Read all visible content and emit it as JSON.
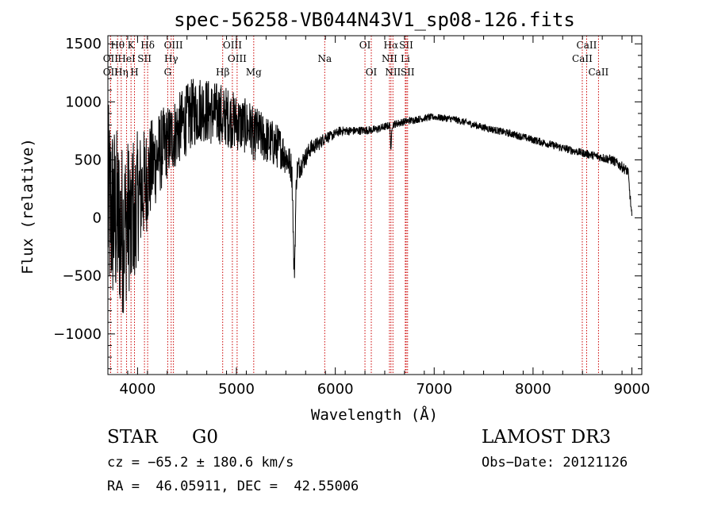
{
  "chart_data": {
    "type": "line",
    "title": "spec-56258-VB044N43V1_sp08-126.fits",
    "xlabel": "Wavelength (Å)",
    "ylabel": "Flux (relative)",
    "xlim": [
      3700,
      9100
    ],
    "ylim": [
      -1350,
      1570
    ],
    "x_ticks": [
      4000,
      5000,
      6000,
      7000,
      8000,
      9000
    ],
    "y_ticks": [
      -1000,
      -500,
      0,
      500,
      1000,
      1500
    ],
    "x_tick_labels": [
      "4000",
      "5000",
      "6000",
      "7000",
      "8000",
      "9000"
    ],
    "y_tick_labels": [
      "−1000",
      "−500",
      "0",
      "500",
      "1000",
      "1500"
    ],
    "grid": false,
    "line_color": "#000000",
    "marker_color": "#cc0000",
    "spectrum_anchors": {
      "x": [
        3700,
        3780,
        3850,
        3950,
        4050,
        4150,
        4250,
        4350,
        4450,
        4550,
        4650,
        4750,
        4850,
        4950,
        5050,
        5150,
        5250,
        5350,
        5450,
        5520,
        5580,
        5650,
        5750,
        5850,
        5900,
        5950,
        6050,
        6200,
        6400,
        6560,
        6700,
        6900,
        7000,
        7200,
        7500,
        7800,
        8100,
        8400,
        8500,
        8600,
        8800,
        8900,
        8960,
        8980,
        9000
      ],
      "y": [
        100,
        0,
        -100,
        100,
        250,
        450,
        600,
        700,
        800,
        900,
        950,
        900,
        900,
        850,
        800,
        780,
        700,
        650,
        600,
        500,
        400,
        450,
        600,
        650,
        700,
        700,
        750,
        750,
        760,
        800,
        830,
        860,
        870,
        850,
        780,
        720,
        650,
        580,
        560,
        540,
        500,
        440,
        400,
        200,
        0
      ]
    },
    "noise_profile": {
      "x": [
        3700,
        3900,
        4100,
        4300,
        4600,
        5000,
        5400,
        5700,
        6000,
        7000,
        8500,
        8900
      ],
      "amplitude": [
        900,
        700,
        450,
        320,
        300,
        250,
        200,
        80,
        40,
        30,
        35,
        45
      ]
    },
    "absorption_dips": [
      {
        "x": 5585,
        "width": 15,
        "depth": 850
      },
      {
        "x": 6563,
        "width": 6,
        "depth": 240
      },
      {
        "x": 4861,
        "width": 8,
        "depth": 150
      },
      {
        "x": 5175,
        "width": 10,
        "depth": 150
      },
      {
        "x": 3934,
        "width": 6,
        "depth": 400
      },
      {
        "x": 3969,
        "width": 6,
        "depth": 400
      }
    ],
    "line_markers": [
      {
        "label": "Hθ",
        "x": 3798,
        "row": 0
      },
      {
        "label": "K",
        "x": 3934,
        "row": 0
      },
      {
        "label": "Hδ",
        "x": 4102,
        "row": 0
      },
      {
        "label": "OII",
        "x": 3727,
        "row": 1
      },
      {
        "label": "HeI",
        "x": 3889,
        "row": 1
      },
      {
        "label": "SII",
        "x": 4070,
        "row": 1
      },
      {
        "label": "OIII",
        "x": 4363,
        "row": 0
      },
      {
        "label": "Hγ",
        "x": 4340,
        "row": 1
      },
      {
        "label": "OIII",
        "x": 4959,
        "row": 0
      },
      {
        "label": "OIII",
        "x": 5007,
        "row": 1
      },
      {
        "label": "OII",
        "x": 3727,
        "row": 2
      },
      {
        "label": "Hη",
        "x": 3835,
        "row": 2
      },
      {
        "label": "H",
        "x": 3969,
        "row": 2
      },
      {
        "label": "G",
        "x": 4305,
        "row": 2
      },
      {
        "label": "Hβ",
        "x": 4861,
        "row": 2
      },
      {
        "label": "Mg",
        "x": 5175,
        "row": 2
      },
      {
        "label": "Na",
        "x": 5893,
        "row": 1
      },
      {
        "label": "OI",
        "x": 6300,
        "row": 0
      },
      {
        "label": "OI",
        "x": 6364,
        "row": 2
      },
      {
        "label": "Hα",
        "x": 6563,
        "row": 0
      },
      {
        "label": "SII",
        "x": 6717,
        "row": 0
      },
      {
        "label": "NII",
        "x": 6548,
        "row": 1
      },
      {
        "label": "Li",
        "x": 6708,
        "row": 1
      },
      {
        "label": "NII",
        "x": 6583,
        "row": 2
      },
      {
        "label": "SII",
        "x": 6731,
        "row": 2
      },
      {
        "label": "CaII",
        "x": 8542,
        "row": 0
      },
      {
        "label": "CaII",
        "x": 8498,
        "row": 1
      },
      {
        "label": "CaII",
        "x": 8662,
        "row": 2
      }
    ]
  },
  "info": {
    "class": "STAR",
    "subclass": "G0",
    "survey": "LAMOST DR3",
    "cz": "cz = −65.2 ± 180.6 km/s",
    "obs_date": "Obs−Date: 20121126",
    "coords": "RA =  46.05911, DEC =  42.55006"
  }
}
